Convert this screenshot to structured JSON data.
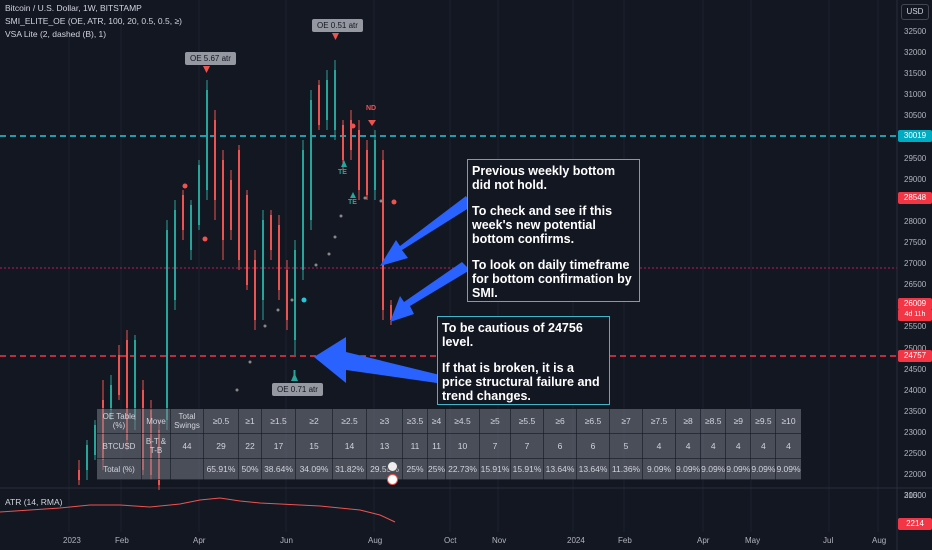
{
  "legend": {
    "line1": "Bitcoin / U.S. Dollar, 1W, BITSTAMP",
    "line2": "SMI_ELITE_OE (OE, ATR, 100, 20, 0.5, 0.5, ≥)",
    "line3": "VSA Lite (2, dashed (B), 1)"
  },
  "currency_button": "USD",
  "price_axis": [
    "32500",
    "32000",
    "31500",
    "31000",
    "30500",
    "30000",
    "29500",
    "29000",
    "28500",
    "28000",
    "27500",
    "27000",
    "26500",
    "26000",
    "25500",
    "25000",
    "24500",
    "24000",
    "23500",
    "23000",
    "22500",
    "22000",
    "21500"
  ],
  "price_tags": {
    "level_30019": "30019",
    "current": "28548",
    "last": "26009",
    "countdown": "4d 11h",
    "level_24757": "24757"
  },
  "atr_pane": {
    "label": "ATR (14, RMA)",
    "axis": "3000",
    "value": "2214"
  },
  "date_axis": [
    "2023",
    "Feb",
    "Apr",
    "Jun",
    "Aug",
    "Oct",
    "Nov",
    "2024",
    "Feb",
    "Apr",
    "May",
    "Jul",
    "Aug"
  ],
  "badges": {
    "oe1": "OE 5.67 atr",
    "oe2": "OE 0.51 atr",
    "oe3": "OE 0.71 atr"
  },
  "markers": {
    "nd": "ND",
    "te1": "TE",
    "te2": "TE"
  },
  "callouts": {
    "top": {
      "line1": "Previous weekly bottom did not hold.",
      "line2": "To check and see if this week's new potential bottom confirms.",
      "line3": "To look on daily timeframe for bottom confirmation by SMI."
    },
    "bottom": {
      "line1": "To be cautious of 24756 level.",
      "line2": "If that is broken, it is a price structural failure and trend changes."
    }
  },
  "oe_table": {
    "header": [
      "OE Table (%)",
      "Move",
      "Total Swings",
      "≥0.5",
      "≥1",
      "≥1.5",
      "≥2",
      "≥2.5",
      "≥3",
      "≥3.5",
      "≥4",
      "≥4.5",
      "≥5",
      "≥5.5",
      "≥6",
      "≥6.5",
      "≥7",
      "≥7.5",
      "≥8",
      "≥8.5",
      "≥9",
      "≥9.5",
      "≥10"
    ],
    "row1": [
      "BTCUSD",
      "B-T & T-B",
      "44",
      "29",
      "22",
      "17",
      "15",
      "14",
      "13",
      "11",
      "11",
      "10",
      "7",
      "7",
      "6",
      "6",
      "5",
      "4",
      "4",
      "4",
      "4",
      "4",
      "4"
    ],
    "row2": [
      "Total (%)",
      "",
      "",
      "65.91%",
      "50%",
      "38.64%",
      "34.09%",
      "31.82%",
      "29.55%",
      "25%",
      "25%",
      "22.73%",
      "15.91%",
      "15.91%",
      "13.64%",
      "13.64%",
      "11.36%",
      "9.09%",
      "9.09%",
      "9.09%",
      "9.09%",
      "9.09%",
      "9.09%"
    ]
  },
  "colors": {
    "background": "#131722",
    "bull": "#26a69a",
    "bear": "#ef5350",
    "resistance_line": "#26c6da",
    "support_line": "#f23645",
    "callout_border": "#3fb6c9",
    "arrow": "#2962ff"
  }
}
